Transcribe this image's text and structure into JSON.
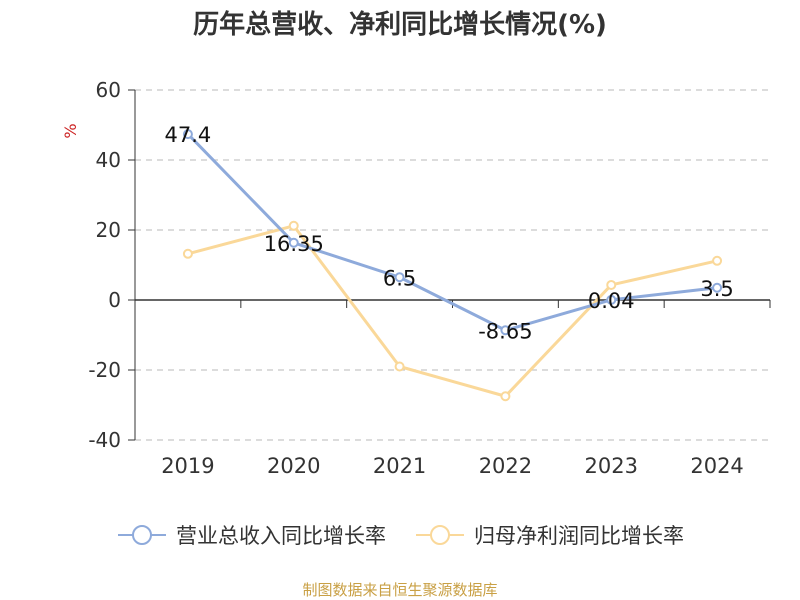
{
  "chart_data": {
    "type": "line",
    "title": "历年总营收、净利同比增长情况(%)",
    "ylabel": "%",
    "xlabel": "",
    "categories": [
      "2019",
      "2020",
      "2021",
      "2022",
      "2023",
      "2024"
    ],
    "ylim": [
      -40,
      60
    ],
    "yticks": [
      60,
      40,
      20,
      0,
      -20,
      -40
    ],
    "grid": true,
    "legend_position": "bottom",
    "series": [
      {
        "name": "营业总收入同比增长率",
        "color": "#8eaadb",
        "values": [
          47.4,
          16.35,
          6.5,
          -8.65,
          0.04,
          3.5
        ],
        "labels": [
          "47.4",
          "16.35",
          "6.5",
          "-8.65",
          "0.04",
          "3.5"
        ]
      },
      {
        "name": "归母净利润同比增长率",
        "color": "#fad899",
        "values": [
          13.2,
          21.2,
          -19.0,
          -27.5,
          4.3,
          11.2
        ]
      }
    ]
  },
  "source": "制图数据来自恒生聚源数据库"
}
